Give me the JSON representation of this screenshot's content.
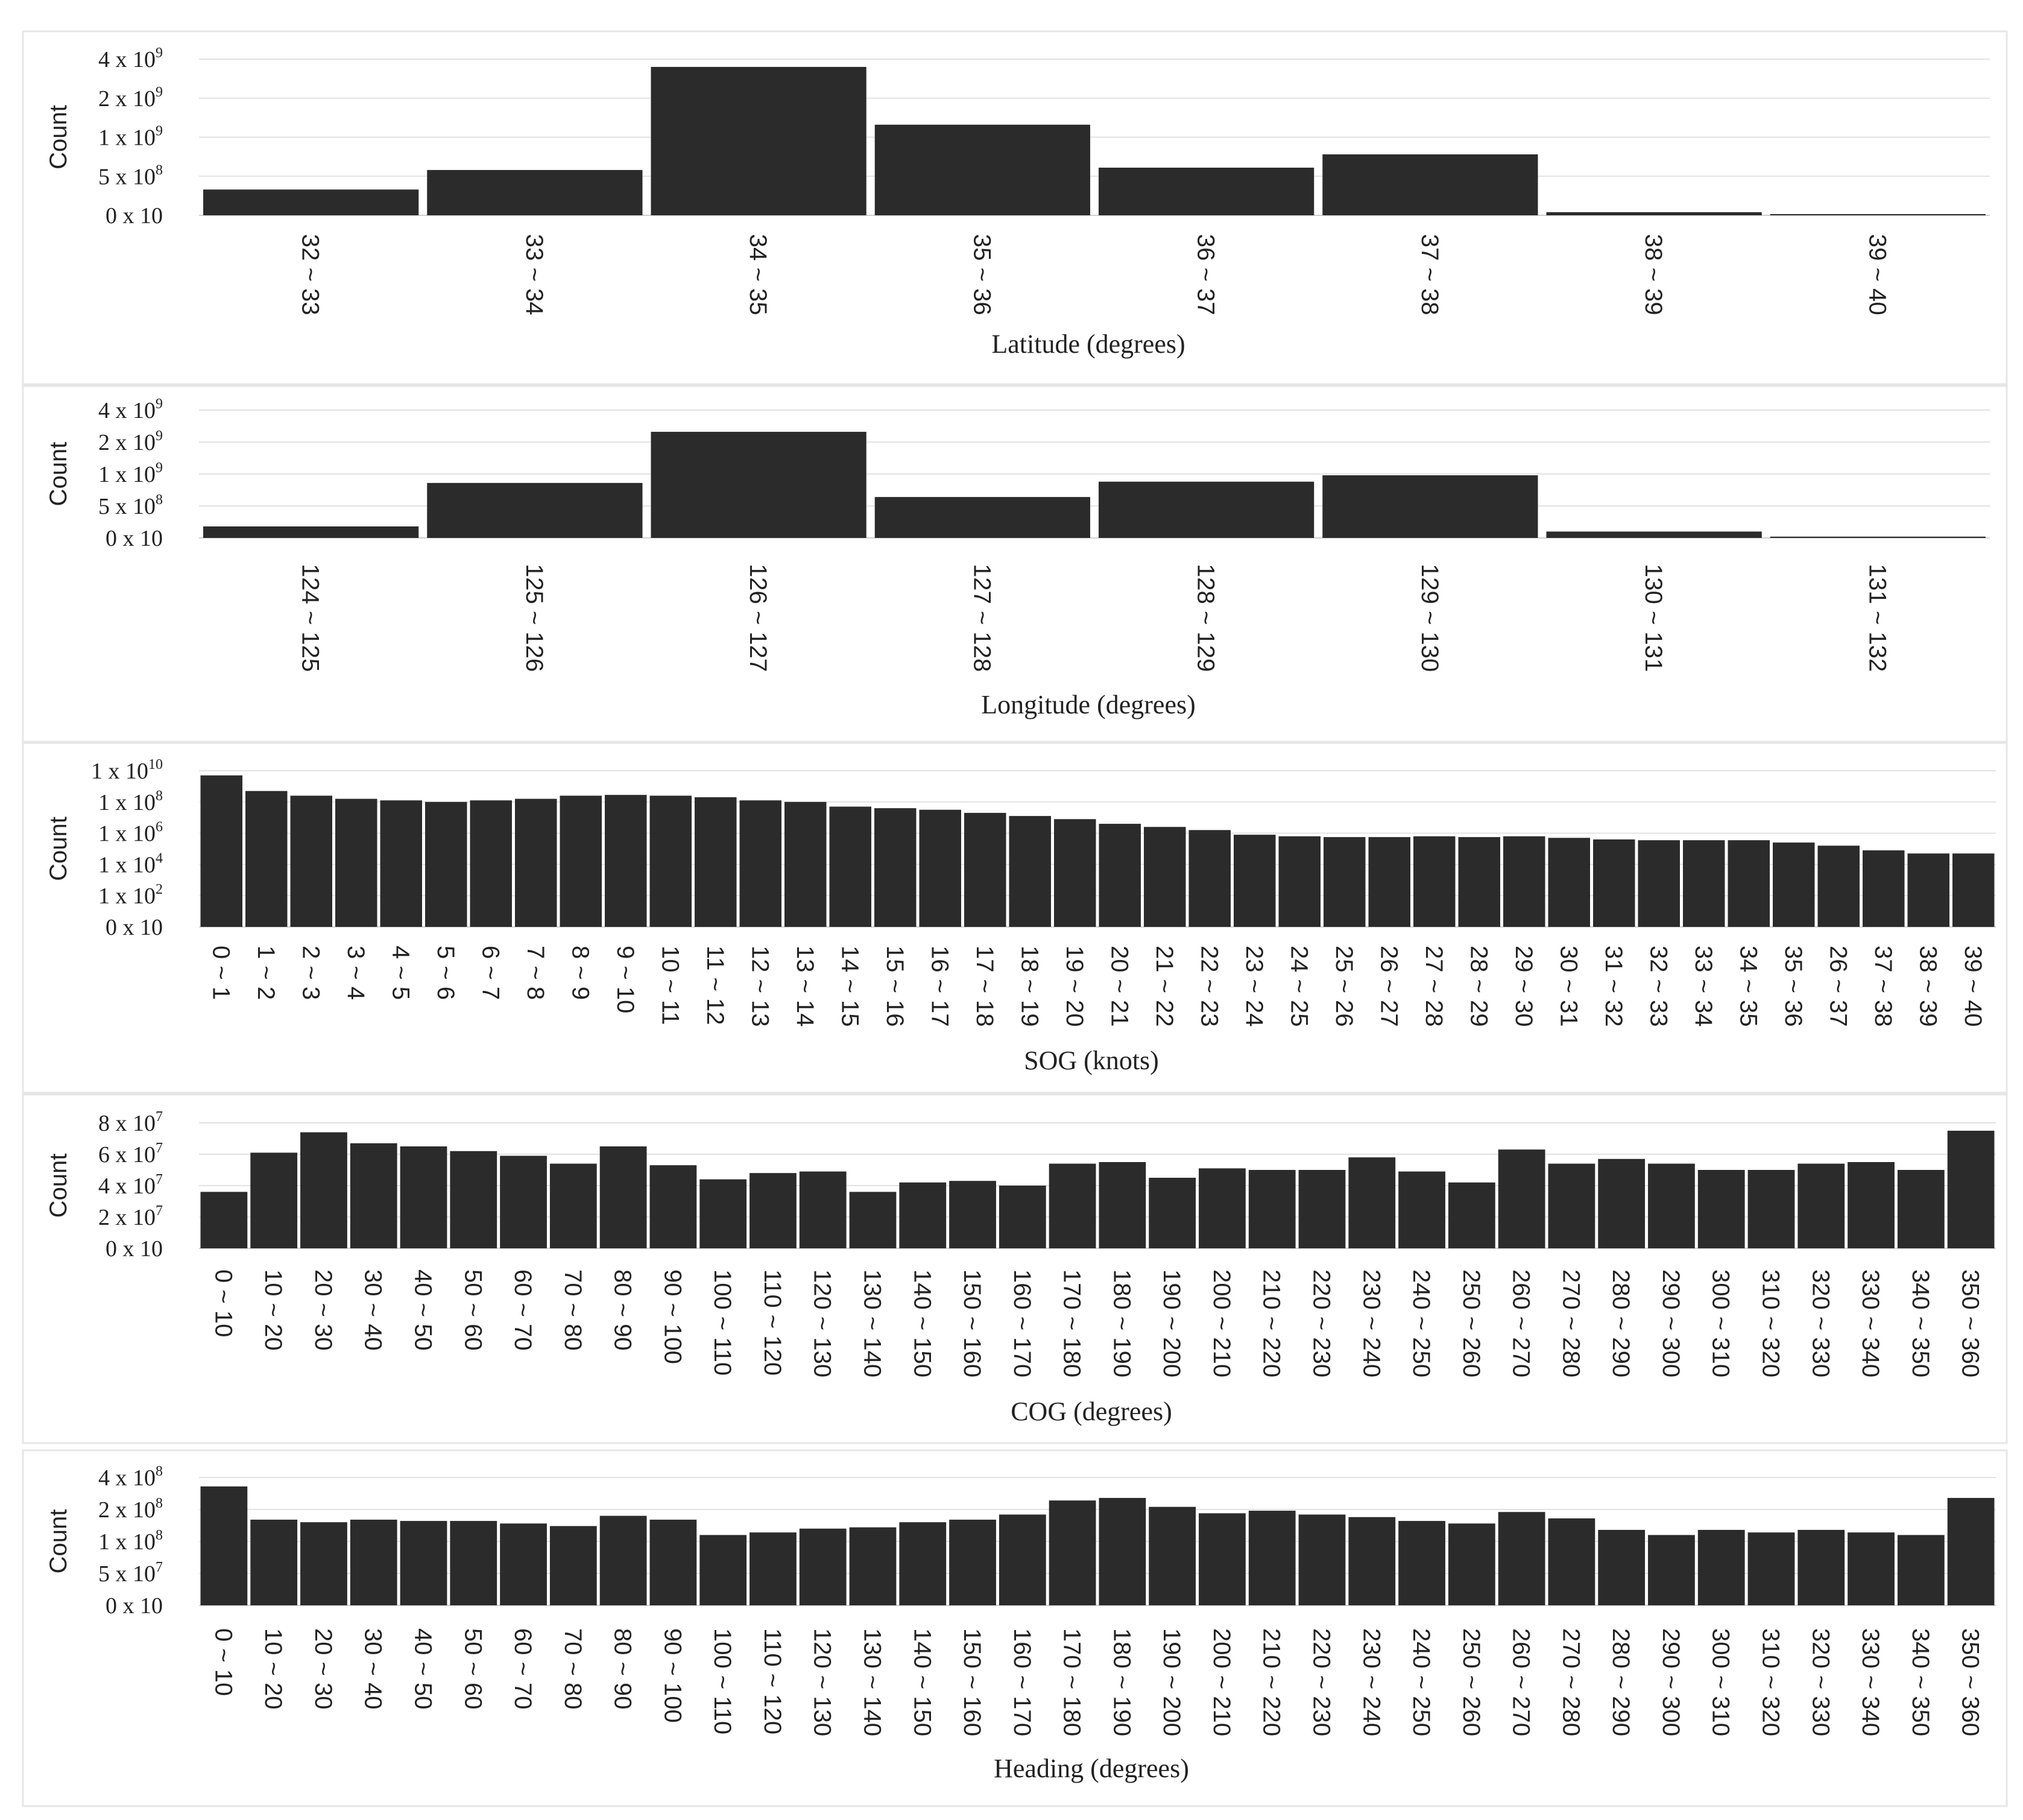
{
  "chart_data": [
    {
      "type": "bar",
      "ylabel": "Count",
      "xlabel": "Latitude (degrees)",
      "yticks": [
        {
          "base": "0 x 10",
          "exp": ""
        },
        {
          "base": "5 x 10",
          "exp": "8"
        },
        {
          "base": "1 x 10",
          "exp": "9"
        },
        {
          "base": "2 x 10",
          "exp": "9"
        },
        {
          "base": "4 x 10",
          "exp": "9"
        }
      ],
      "categories": [
        "32 ~ 33",
        "33 ~ 34",
        "34 ~ 35",
        "35 ~ 36",
        "36 ~ 37",
        "37 ~ 38",
        "38 ~ 39",
        "39 ~ 40"
      ],
      "values": [
        0.165,
        0.29,
        0.95,
        0.58,
        0.305,
        0.39,
        0.02,
        0.005
      ]
    },
    {
      "type": "bar",
      "ylabel": "Count",
      "xlabel": "Longitude (degrees)",
      "yticks": [
        {
          "base": "0 x 10",
          "exp": ""
        },
        {
          "base": "5 x 10",
          "exp": "8"
        },
        {
          "base": "1 x 10",
          "exp": "9"
        },
        {
          "base": "2 x 10",
          "exp": "9"
        },
        {
          "base": "4 x 10",
          "exp": "9"
        }
      ],
      "categories": [
        "124 ~ 125",
        "125 ~ 126",
        "126 ~ 127",
        "127 ~ 128",
        "128 ~ 129",
        "129 ~ 130",
        "130 ~ 131",
        "131 ~ 132"
      ],
      "values": [
        0.09,
        0.43,
        0.83,
        0.32,
        0.44,
        0.49,
        0.05,
        0.01
      ]
    },
    {
      "type": "bar",
      "ylabel": "Count",
      "xlabel": "SOG (knots)",
      "yticks": [
        {
          "base": "0 x 10",
          "exp": ""
        },
        {
          "base": "1 x 10",
          "exp": "2"
        },
        {
          "base": "1 x 10",
          "exp": "4"
        },
        {
          "base": "1 x 10",
          "exp": "6"
        },
        {
          "base": "1 x 10",
          "exp": "8"
        },
        {
          "base": "1 x 10",
          "exp": "10"
        }
      ],
      "categories": [
        "0 ~ 1",
        "1 ~ 2",
        "2 ~ 3",
        "3 ~ 4",
        "4 ~ 5",
        "5 ~ 6",
        "6 ~ 7",
        "7 ~ 8",
        "8 ~ 9",
        "9 ~ 10",
        "10 ~ 11",
        "11 ~ 12",
        "12 ~ 13",
        "13 ~ 14",
        "14 ~ 15",
        "15 ~ 16",
        "16 ~ 17",
        "17 ~ 18",
        "18 ~ 19",
        "19 ~ 20",
        "20 ~ 21",
        "21 ~ 22",
        "22 ~ 23",
        "23 ~ 24",
        "24 ~ 25",
        "25 ~ 26",
        "26 ~ 27",
        "27 ~ 28",
        "28 ~ 29",
        "29 ~ 30",
        "30 ~ 31",
        "31 ~ 32",
        "32 ~ 33",
        "33 ~ 34",
        "34 ~ 35",
        "35 ~ 36",
        "26 ~ 37",
        "37 ~ 38",
        "38 ~ 39",
        "39 ~ 40"
      ],
      "values": [
        0.97,
        0.87,
        0.84,
        0.82,
        0.81,
        0.8,
        0.81,
        0.82,
        0.84,
        0.845,
        0.84,
        0.83,
        0.81,
        0.8,
        0.77,
        0.76,
        0.75,
        0.73,
        0.71,
        0.69,
        0.66,
        0.64,
        0.62,
        0.59,
        0.58,
        0.575,
        0.575,
        0.58,
        0.575,
        0.58,
        0.57,
        0.56,
        0.555,
        0.555,
        0.555,
        0.54,
        0.52,
        0.49,
        0.47,
        0.47
      ]
    },
    {
      "type": "bar",
      "ylabel": "Count",
      "xlabel": "COG (degrees)",
      "yticks": [
        {
          "base": "0 x 10",
          "exp": ""
        },
        {
          "base": "2 x 10",
          "exp": "7"
        },
        {
          "base": "4 x 10",
          "exp": "7"
        },
        {
          "base": "6 x 10",
          "exp": "7"
        },
        {
          "base": "8 x 10",
          "exp": "7"
        }
      ],
      "categories": [
        "0 ~ 10",
        "10 ~ 20",
        "20 ~ 30",
        "30 ~ 40",
        "40 ~ 50",
        "50 ~ 60",
        "60 ~ 70",
        "70 ~ 80",
        "80 ~ 90",
        "90 ~ 100",
        "100 ~ 110",
        "110 ~ 120",
        "120 ~ 130",
        "130 ~ 140",
        "140 ~ 150",
        "150 ~ 160",
        "160 ~ 170",
        "170 ~ 180",
        "180 ~ 190",
        "190 ~ 200",
        "200 ~ 210",
        "210 ~ 220",
        "220 ~ 230",
        "230 ~ 240",
        "240 ~ 250",
        "250 ~ 260",
        "260 ~ 270",
        "270 ~ 280",
        "280 ~ 290",
        "290 ~ 300",
        "300 ~ 310",
        "310 ~ 320",
        "320 ~ 330",
        "330 ~ 340",
        "340 ~ 350",
        "350 ~ 360"
      ],
      "values": [
        3.6,
        6.1,
        7.4,
        6.7,
        6.5,
        6.2,
        5.9,
        5.4,
        6.5,
        5.3,
        4.4,
        4.8,
        4.9,
        3.6,
        4.2,
        4.3,
        4.0,
        5.4,
        5.5,
        4.5,
        5.1,
        5.0,
        5.0,
        5.8,
        4.9,
        4.2,
        6.3,
        5.4,
        5.7,
        5.4,
        5.0,
        5.0,
        5.4,
        5.5,
        5.0,
        7.5
      ]
    },
    {
      "type": "bar",
      "ylabel": "Count",
      "xlabel": "Heading (degrees)",
      "yticks": [
        {
          "base": "0 x 10",
          "exp": ""
        },
        {
          "base": "5 x 10",
          "exp": "7"
        },
        {
          "base": "1 x 10",
          "exp": "8"
        },
        {
          "base": "2 x 10",
          "exp": "8"
        },
        {
          "base": "4 x 10",
          "exp": "8"
        }
      ],
      "categories": [
        "0 ~ 10",
        "10 ~ 20",
        "20 ~ 30",
        "30 ~ 40",
        "40 ~ 50",
        "50 ~ 60",
        "60 ~ 70",
        "70 ~ 80",
        "80 ~ 90",
        "90 ~ 100",
        "100 ~ 110",
        "110 ~ 120",
        "120 ~ 130",
        "130 ~ 140",
        "140 ~ 150",
        "150 ~ 160",
        "160 ~ 170",
        "170 ~ 180",
        "180 ~ 190",
        "190 ~ 200",
        "200 ~ 210",
        "210 ~ 220",
        "220 ~ 230",
        "230 ~ 240",
        "240 ~ 250",
        "250 ~ 260",
        "260 ~ 270",
        "270 ~ 280",
        "280 ~ 290",
        "290 ~ 300",
        "300 ~ 310",
        "310 ~ 320",
        "320 ~ 330",
        "330 ~ 340",
        "340 ~ 350",
        "350 ~ 360"
      ],
      "values": [
        0.93,
        0.67,
        0.65,
        0.67,
        0.66,
        0.66,
        0.64,
        0.62,
        0.7,
        0.67,
        0.55,
        0.57,
        0.6,
        0.61,
        0.65,
        0.67,
        0.71,
        0.82,
        0.84,
        0.77,
        0.72,
        0.74,
        0.71,
        0.69,
        0.66,
        0.64,
        0.73,
        0.68,
        0.59,
        0.55,
        0.59,
        0.57,
        0.59,
        0.57,
        0.55,
        0.84
      ]
    }
  ]
}
